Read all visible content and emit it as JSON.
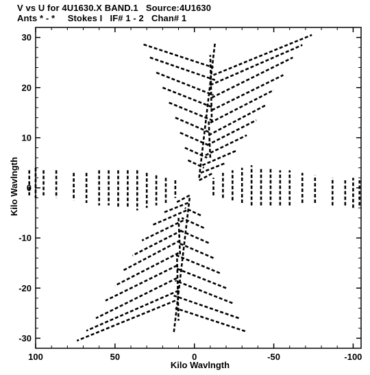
{
  "chart_data": {
    "type": "scatter",
    "title": "V vs U for 4U1630.X BAND.1   Source:4U1630",
    "subtitle": "Ants * - *     Stokes I   IF# 1 - 2   Chan# 1",
    "xlabel": "Kilo Wavlngth",
    "ylabel": "Kilo Wavlngth",
    "xlim": [
      100,
      -105
    ],
    "ylim": [
      -32,
      32
    ],
    "x_reversed": true,
    "xticks": [
      100,
      50,
      0,
      -50,
      -100
    ],
    "yticks": [
      30,
      20,
      10,
      0,
      -10,
      -20,
      -30
    ],
    "xtick_labels": [
      "100",
      "50",
      "0",
      "-50",
      "-100"
    ],
    "ytick_labels": [
      "30",
      "20",
      "10",
      "0",
      "-10",
      "-20",
      "-30"
    ],
    "grid": false,
    "marker": "short dashed arc segments (uv-coverage tracks)",
    "series": [
      {
        "description": "Near-vertical tracks (upper half; the lower half is the point-symmetric conjugate (-u,-v))",
        "segments": [
          [
            [
              32,
              28.6
            ],
            [
              -12,
              24.0
            ]
          ],
          [
            [
              28,
              26.0
            ],
            [
              -13,
              21.5
            ]
          ],
          [
            [
              24,
              23.0
            ],
            [
              -12,
              18.5
            ]
          ],
          [
            [
              20,
              20.0
            ],
            [
              -12,
              16.0
            ]
          ],
          [
            [
              16,
              17.0
            ],
            [
              -11,
              13.5
            ]
          ],
          [
            [
              12,
              14.0
            ],
            [
              -10,
              11.0
            ]
          ],
          [
            [
              9,
              11.0
            ],
            [
              -9,
              8.5
            ]
          ],
          [
            [
              6,
              8.0
            ],
            [
              -8,
              6.0
            ]
          ],
          [
            [
              4,
              5.5
            ],
            [
              -6,
              4.0
            ]
          ],
          [
            [
              -10,
              20.5
            ],
            [
              -68,
              28.5
            ]
          ],
          [
            [
              -11,
              18.0
            ],
            [
              -62,
              26.0
            ]
          ],
          [
            [
              -11,
              15.5
            ],
            [
              -56,
              22.5
            ]
          ],
          [
            [
              -10,
              13.0
            ],
            [
              -50,
              19.5
            ]
          ],
          [
            [
              -9,
              10.5
            ],
            [
              -45,
              16.5
            ]
          ],
          [
            [
              -8,
              8.5
            ],
            [
              -39,
              13.5
            ]
          ],
          [
            [
              -7,
              6.5
            ],
            [
              -33,
              10.5
            ]
          ],
          [
            [
              -5,
              4.5
            ],
            [
              -27,
              7.5
            ]
          ],
          [
            [
              -4,
              3.0
            ],
            [
              -20,
              5.0
            ]
          ],
          [
            [
              -12,
              22.5
            ],
            [
              -74,
              30.5
            ]
          ],
          [
            [
              -11,
              13.0
            ],
            [
              -10,
              26.5
            ]
          ],
          [
            [
              -10,
              6.0
            ],
            [
              -9,
              13.5
            ]
          ],
          [
            [
              -3,
              1.5
            ],
            [
              -12,
              3.0
            ]
          ]
        ]
      },
      {
        "description": "Near-horizontal tracks (right side; left side is the conjugate)",
        "segments": [
          [
            [
              -95,
              -3.5
            ],
            [
              -95,
              1.5
            ]
          ],
          [
            [
              -87,
              -3.5
            ],
            [
              -87,
              2.0
            ]
          ],
          [
            [
              -76,
              -3.0
            ],
            [
              -76,
              2.5
            ]
          ],
          [
            [
              -68,
              -3.0
            ],
            [
              -68,
              3.0
            ]
          ],
          [
            [
              -60,
              -3.5
            ],
            [
              -60,
              3.5
            ]
          ],
          [
            [
              -54,
              -3.5
            ],
            [
              -54,
              3.5
            ]
          ],
          [
            [
              -48,
              -3.5
            ],
            [
              -48,
              4.0
            ]
          ],
          [
            [
              -42,
              -3.5
            ],
            [
              -42,
              4.0
            ]
          ],
          [
            [
              -36,
              -3.5
            ],
            [
              -36,
              4.5
            ]
          ],
          [
            [
              -30,
              -3.0
            ],
            [
              -30,
              4.0
            ]
          ],
          [
            [
              -24,
              -2.5
            ],
            [
              -24,
              3.5
            ]
          ],
          [
            [
              -18,
              -2.0
            ],
            [
              -18,
              3.0
            ]
          ],
          [
            [
              -12,
              -1.5
            ],
            [
              -12,
              2.0
            ]
          ],
          [
            [
              -104,
              -3.5
            ],
            [
              -104,
              1.5
            ]
          ],
          [
            [
              -100,
              -4.0
            ],
            [
              -100,
              2.0
            ]
          ]
        ]
      },
      {
        "description": "Spine tracks near u = -10 (conjugate spine near u = +10)",
        "segments": [
          [
            [
              -3,
              2.0
            ],
            [
              -13,
              29.0
            ]
          ]
        ]
      }
    ]
  }
}
